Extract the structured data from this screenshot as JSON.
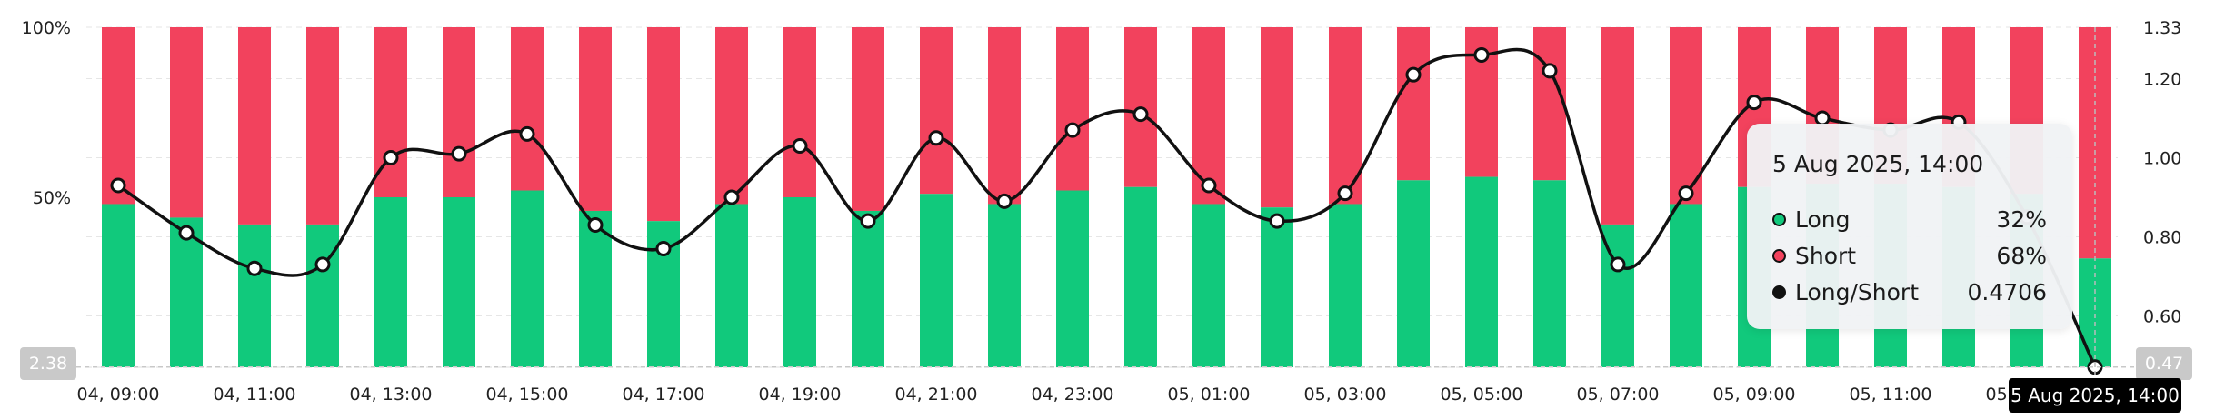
{
  "chart_data": {
    "type": "bar",
    "stacked": true,
    "title": "",
    "categories": [
      "04, 09:00",
      "04, 10:00",
      "04, 11:00",
      "04, 12:00",
      "04, 13:00",
      "04, 14:00",
      "04, 15:00",
      "04, 16:00",
      "04, 17:00",
      "04, 18:00",
      "04, 19:00",
      "04, 20:00",
      "04, 21:00",
      "04, 22:00",
      "04, 23:00",
      "05, 00:00",
      "05, 01:00",
      "05, 02:00",
      "05, 03:00",
      "05, 04:00",
      "05, 05:00",
      "05, 06:00",
      "05, 07:00",
      "05, 08:00",
      "05, 09:00",
      "05, 10:00",
      "05, 11:00",
      "05, 12:00",
      "05, 13:00",
      "05, 14:00"
    ],
    "x_tick_labels": [
      "04, 09:00",
      "04, 11:00",
      "04, 13:00",
      "04, 15:00",
      "04, 17:00",
      "04, 19:00",
      "04, 21:00",
      "04, 23:00",
      "05, 01:00",
      "05, 03:00",
      "05, 05:00",
      "05, 07:00",
      "05, 09:00",
      "05, 11:00",
      "05, 13:00"
    ],
    "series": [
      {
        "name": "Long",
        "color": "#11c97c",
        "axis": "left",
        "values": [
          48,
          44,
          42,
          42,
          50,
          50,
          52,
          46,
          43,
          48,
          50,
          46,
          51,
          48,
          52,
          53,
          48,
          47,
          48,
          55,
          56,
          55,
          42,
          48,
          53,
          54,
          54,
          53,
          51,
          32
        ]
      },
      {
        "name": "Short",
        "color": "#f2425d",
        "axis": "left",
        "values": [
          52,
          56,
          58,
          58,
          50,
          50,
          48,
          54,
          57,
          52,
          50,
          54,
          49,
          52,
          48,
          47,
          52,
          53,
          52,
          45,
          44,
          45,
          58,
          52,
          47,
          46,
          46,
          47,
          49,
          68
        ]
      },
      {
        "name": "Long/Short",
        "type": "line",
        "color": "#111111",
        "axis": "right",
        "values": [
          0.93,
          0.81,
          0.72,
          0.73,
          1.0,
          1.01,
          1.06,
          0.83,
          0.77,
          0.9,
          1.03,
          0.84,
          1.05,
          0.89,
          1.07,
          1.11,
          0.93,
          0.84,
          0.91,
          1.21,
          1.26,
          1.22,
          0.73,
          0.91,
          1.14,
          1.1,
          1.07,
          1.09,
          0.85,
          0.4706
        ]
      }
    ],
    "y_left": {
      "ticks": [
        "100%",
        "50%"
      ],
      "range": [
        0,
        100
      ]
    },
    "y_right": {
      "ticks": [
        "1.33",
        "1.20",
        "1.00",
        "0.80",
        "0.60"
      ],
      "range": [
        0.47,
        1.33
      ]
    },
    "grid": true,
    "axis_badges": {
      "left": "2.38",
      "right": "0.47",
      "time": "5 Aug 2025, 14:00"
    }
  },
  "tooltip": {
    "title": "5 Aug 2025, 14:00",
    "rows": [
      {
        "label": "Long",
        "value": "32%",
        "color": "#11c97c"
      },
      {
        "label": "Short",
        "value": "68%",
        "color": "#f2425d"
      },
      {
        "label": "Long/Short",
        "value": "0.4706",
        "color": "#111111"
      }
    ]
  }
}
